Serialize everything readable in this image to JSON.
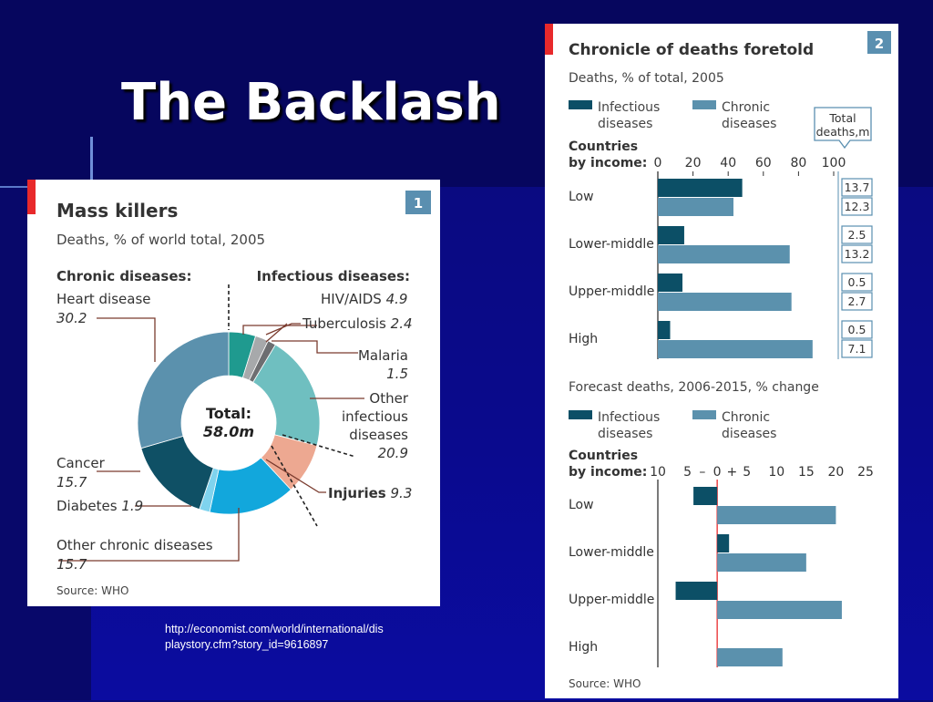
{
  "slide": {
    "title": "The Backlash",
    "source_url": "http://economist.com/world/international/displaystory.cfm?story_id=9616897"
  },
  "colors": {
    "infectious": "#0c4f66",
    "chronic": "#5b91ad",
    "red_accent": "#e8292b",
    "badge": "#5a8fb0"
  },
  "chart_data": [
    {
      "type": "pie",
      "badge": "1",
      "title": "Mass killers",
      "subtitle": "Deaths, % of world total, 2005",
      "group_labels": {
        "chronic": "Chronic diseases:",
        "infectious": "Infectious diseases:"
      },
      "center_label": "Total:",
      "center_value": "58.0m",
      "source": "Source: WHO",
      "slices": [
        {
          "label": "HIV/AIDS",
          "value": 4.9,
          "group": "infectious",
          "color": "#1f9a8f"
        },
        {
          "label": "Tuberculosis",
          "value": 2.4,
          "group": "infectious",
          "color": "#a7a9ab"
        },
        {
          "label": "Malaria",
          "value": 1.5,
          "group": "infectious",
          "color": "#6d6e71"
        },
        {
          "label": "Other infectious diseases",
          "value": 20.9,
          "group": "infectious",
          "color": "#6fbfc0"
        },
        {
          "label": "Injuries",
          "value": 9.3,
          "group": "injuries",
          "color": "#eda891"
        },
        {
          "label": "Other chronic diseases",
          "value": 15.7,
          "group": "chronic",
          "color": "#12a7dc"
        },
        {
          "label": "Diabetes",
          "value": 1.9,
          "group": "chronic",
          "color": "#7fd3ee"
        },
        {
          "label": "Cancer",
          "value": 15.7,
          "group": "chronic",
          "color": "#0f5065"
        },
        {
          "label": "Heart disease",
          "value": 30.2,
          "group": "chronic",
          "color": "#5b91ad"
        }
      ],
      "annotations": {
        "hiv": "HIV/AIDS",
        "hiv_v": "4.9",
        "tb": "Tuberculosis",
        "tb_v": "2.4",
        "malaria": "Malaria",
        "malaria_v": "1.5",
        "other_inf_1": "Other",
        "other_inf_2": "infectious",
        "other_inf_3": "diseases",
        "other_inf_v": "20.9",
        "injuries": "Injuries",
        "injuries_v": "9.3",
        "heart": "Heart disease",
        "heart_v": "30.2",
        "cancer": "Cancer",
        "cancer_v": "15.7",
        "diabetes": "Diabetes",
        "diabetes_v": "1.9",
        "other_chronic": "Other chronic diseases",
        "other_chronic_v": "15.7"
      }
    },
    {
      "type": "bar",
      "badge": "2",
      "title": "Chronicle of deaths foretold",
      "subtitle": "Deaths, % of total, 2005",
      "legend": {
        "infectious_1": "Infectious",
        "infectious_2": "diseases",
        "chronic_1": "Chronic",
        "chronic_2": "diseases"
      },
      "axis_title_1": "Countries",
      "axis_title_2": "by income:",
      "total_box_1": "Total",
      "total_box_2": "deaths,m",
      "xlim": [
        0,
        100
      ],
      "ticks": [
        "0",
        "20",
        "40",
        "60",
        "80",
        "100"
      ],
      "categories": [
        "Low",
        "Lower-middle",
        "Upper-middle",
        "High"
      ],
      "series": [
        {
          "name": "Infectious diseases",
          "values": [
            48,
            15,
            14,
            7
          ]
        },
        {
          "name": "Chronic diseases",
          "values": [
            43,
            75,
            76,
            88
          ]
        }
      ],
      "totals": [
        [
          "13.7",
          "12.3"
        ],
        [
          "2.5",
          "13.2"
        ],
        [
          "0.5",
          "2.7"
        ],
        [
          "0.5",
          "7.1"
        ]
      ]
    },
    {
      "type": "bar",
      "subtitle": "Forecast deaths, 2006-2015, % change",
      "legend": {
        "infectious_1": "Infectious",
        "infectious_2": "diseases",
        "chronic_1": "Chronic",
        "chronic_2": "diseases"
      },
      "axis_title_1": "Countries",
      "axis_title_2": "by income:",
      "xlim": [
        -10,
        25
      ],
      "ticks": [
        "10",
        "5",
        "–",
        "0",
        "+",
        "5",
        "10",
        "15",
        "20",
        "25"
      ],
      "categories": [
        "Low",
        "Lower-middle",
        "Upper-middle",
        "High"
      ],
      "series": [
        {
          "name": "Infectious diseases",
          "values": [
            -4,
            2,
            -7,
            0
          ]
        },
        {
          "name": "Chronic diseases",
          "values": [
            20,
            15,
            21,
            11
          ]
        }
      ],
      "source": "Source: WHO"
    }
  ]
}
